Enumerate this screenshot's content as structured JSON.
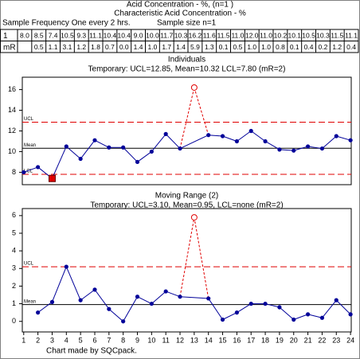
{
  "header": {
    "title": "Acid Concentration - %, (n=1 )",
    "characteristic": "Characteristic Acid Concentration - %",
    "frequency": "Sample Frequency One every 2 hrs.",
    "sample_size": "Sample size n=1"
  },
  "table": {
    "row_labels": [
      "1",
      "mR"
    ],
    "rows": [
      [
        "8.0",
        "8.5",
        "7.4",
        "10.5",
        "9.3",
        "11.1",
        "10.4",
        "10.4",
        "9.0",
        "10.0",
        "11.7",
        "10.3",
        "16.2",
        "11.6",
        "11.5",
        "11.0",
        "12.0",
        "11.0",
        "10.2",
        "10.1",
        "10.5",
        "10.3",
        "11.5",
        "11.1"
      ],
      [
        null,
        "0.5",
        "1.1",
        "3.1",
        "1.2",
        "1.8",
        "0.7",
        "0.0",
        "1.4",
        "1.0",
        "1.7",
        "1.4",
        "5.9",
        "1.3",
        "0.1",
        "0.5",
        "1.0",
        "1.0",
        "0.8",
        "0.1",
        "0.4",
        "0.2",
        "1.2",
        "0.4"
      ]
    ]
  },
  "chart_data": [
    {
      "type": "line",
      "title": "Individuals",
      "subtitle": "Temporary: UCL=12.85, Mean=10.32 LCL=7.80 (mR=2)",
      "x": [
        1,
        2,
        3,
        4,
        5,
        6,
        7,
        8,
        9,
        10,
        11,
        12,
        13,
        14,
        15,
        16,
        17,
        18,
        19,
        20,
        21,
        22,
        23,
        24
      ],
      "values": [
        8.0,
        8.5,
        7.4,
        10.5,
        9.3,
        11.1,
        10.4,
        10.4,
        9.0,
        10.0,
        11.7,
        10.3,
        16.2,
        11.6,
        11.5,
        11.0,
        12.0,
        11.0,
        10.2,
        10.1,
        10.5,
        10.3,
        11.5,
        11.1
      ],
      "color": "#000099",
      "xlim": [
        0.9,
        24.05
      ],
      "ylim": [
        6.8,
        17.2
      ],
      "yticks": [
        8,
        10,
        12,
        14,
        16
      ],
      "limits": [
        {
          "label": "UCL",
          "value": 12.85,
          "color": "#e00000",
          "dashed": true
        },
        {
          "label": "Mean",
          "value": 10.32,
          "color": "#000000",
          "dashed": false
        },
        {
          "label": "LCL",
          "value": 7.8,
          "color": "#e00000",
          "dashed": true
        }
      ],
      "excluded_x": [
        13
      ],
      "out_of_control_x": [
        3
      ],
      "flag_color": "#e00000"
    },
    {
      "type": "line",
      "title": "Moving Range (2)",
      "subtitle": "Temporary: UCL=3.10, Mean=0.95, LCL=none (mR=2)",
      "x": [
        1,
        2,
        3,
        4,
        5,
        6,
        7,
        8,
        9,
        10,
        11,
        12,
        13,
        14,
        15,
        16,
        17,
        18,
        19,
        20,
        21,
        22,
        23,
        24
      ],
      "values": [
        null,
        0.5,
        1.1,
        3.1,
        1.2,
        1.8,
        0.7,
        0.0,
        1.4,
        1.0,
        1.7,
        1.4,
        5.9,
        1.3,
        0.1,
        0.5,
        1.0,
        1.0,
        0.8,
        0.1,
        0.4,
        0.2,
        1.2,
        0.4
      ],
      "color": "#000099",
      "xlim": [
        0.9,
        24.05
      ],
      "ylim": [
        -0.6,
        6.4
      ],
      "yticks": [
        0,
        1,
        2,
        3,
        4,
        5,
        6
      ],
      "xticks": [
        1,
        2,
        3,
        4,
        5,
        6,
        7,
        8,
        9,
        10,
        11,
        12,
        13,
        14,
        15,
        16,
        17,
        18,
        19,
        20,
        21,
        22,
        23,
        24
      ],
      "limits": [
        {
          "label": "UCL",
          "value": 3.1,
          "color": "#e00000",
          "dashed": true
        },
        {
          "label": "Mean",
          "value": 0.95,
          "color": "#000000",
          "dashed": false
        }
      ],
      "excluded_x": [
        13
      ],
      "out_of_control_x": [],
      "flag_color": "#e00000"
    }
  ],
  "footer": "Chart made by SQCpack."
}
